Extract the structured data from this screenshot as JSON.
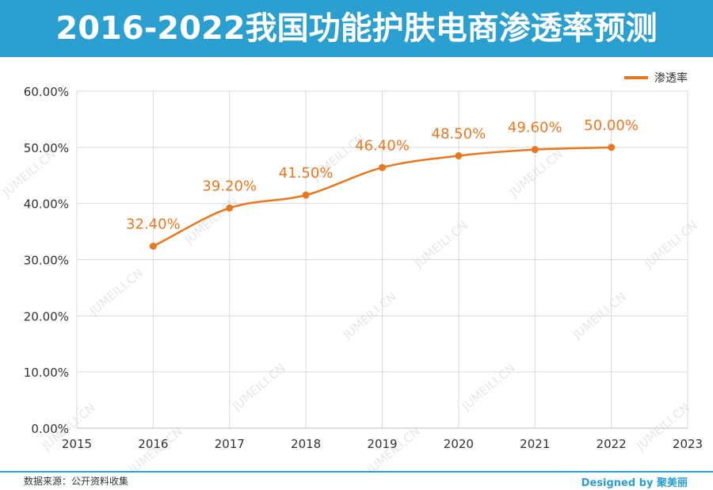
{
  "header": {
    "title": "2016-2022我国功能护肤电商渗透率预测"
  },
  "chart_data": {
    "type": "line",
    "x": [
      2016,
      2017,
      2018,
      2019,
      2020,
      2021,
      2022
    ],
    "values": [
      32.4,
      39.2,
      41.5,
      46.4,
      48.5,
      49.6,
      50.0
    ],
    "data_labels": [
      "32.40%",
      "39.20%",
      "41.50%",
      "46.40%",
      "48.50%",
      "49.60%",
      "50.00%"
    ],
    "series_name": "渗透率",
    "xlim": [
      2015,
      2023
    ],
    "x_ticks": [
      "2015",
      "2016",
      "2017",
      "2018",
      "2019",
      "2020",
      "2021",
      "2022",
      "2023"
    ],
    "ylim": [
      0,
      60
    ],
    "y_ticks": [
      "0.00%",
      "10.00%",
      "20.00%",
      "30.00%",
      "40.00%",
      "50.00%",
      "60.00%"
    ],
    "grid": true,
    "legend_position": "top-right",
    "series_color": "#e87722"
  },
  "watermark": "JUMEILI.CN",
  "footer": {
    "source": "数据来源：公开资料收集",
    "brand": "Designed by 聚美丽"
  },
  "colors": {
    "header_bg": "#2a9fd0",
    "line": "#e87722",
    "grid": "#d9d9d9"
  }
}
